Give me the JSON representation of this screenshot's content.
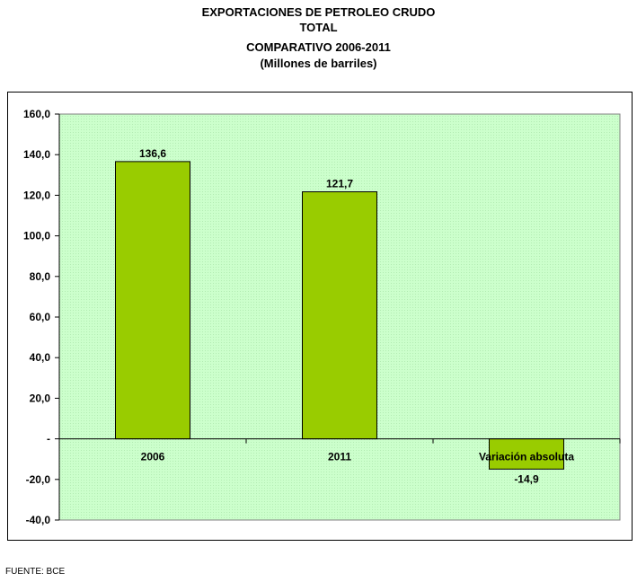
{
  "title": {
    "line1": "EXPORTACIONES DE PETROLEO CRUDO",
    "line2": "TOTAL",
    "line3": "COMPARATIVO 2006-2011",
    "line4": "(Millones de barriles)"
  },
  "source": "FUENTE: BCE",
  "colors": {
    "plot_background": "#ccffcc",
    "bar_fill": "#99cc00",
    "bar_stroke": "#000000"
  },
  "chart_data": {
    "type": "bar",
    "title": "EXPORTACIONES DE PETROLEO CRUDO TOTAL COMPARATIVO 2006-2011 (Millones de barriles)",
    "categories": [
      "2006",
      "2011",
      "Variación absoluta"
    ],
    "values": [
      136.6,
      121.7,
      -14.9
    ],
    "data_labels": [
      "136,6",
      "121,7",
      "-14,9"
    ],
    "ylim": [
      -40,
      160
    ],
    "yticks": [
      -40,
      -20,
      0,
      20,
      40,
      60,
      80,
      100,
      120,
      140,
      160
    ],
    "ytick_labels": [
      "-40,0",
      "-20,0",
      "-",
      "20,0",
      "40,0",
      "60,0",
      "80,0",
      "100,0",
      "120,0",
      "140,0",
      "160,0"
    ],
    "grid": false,
    "legend": "none"
  }
}
